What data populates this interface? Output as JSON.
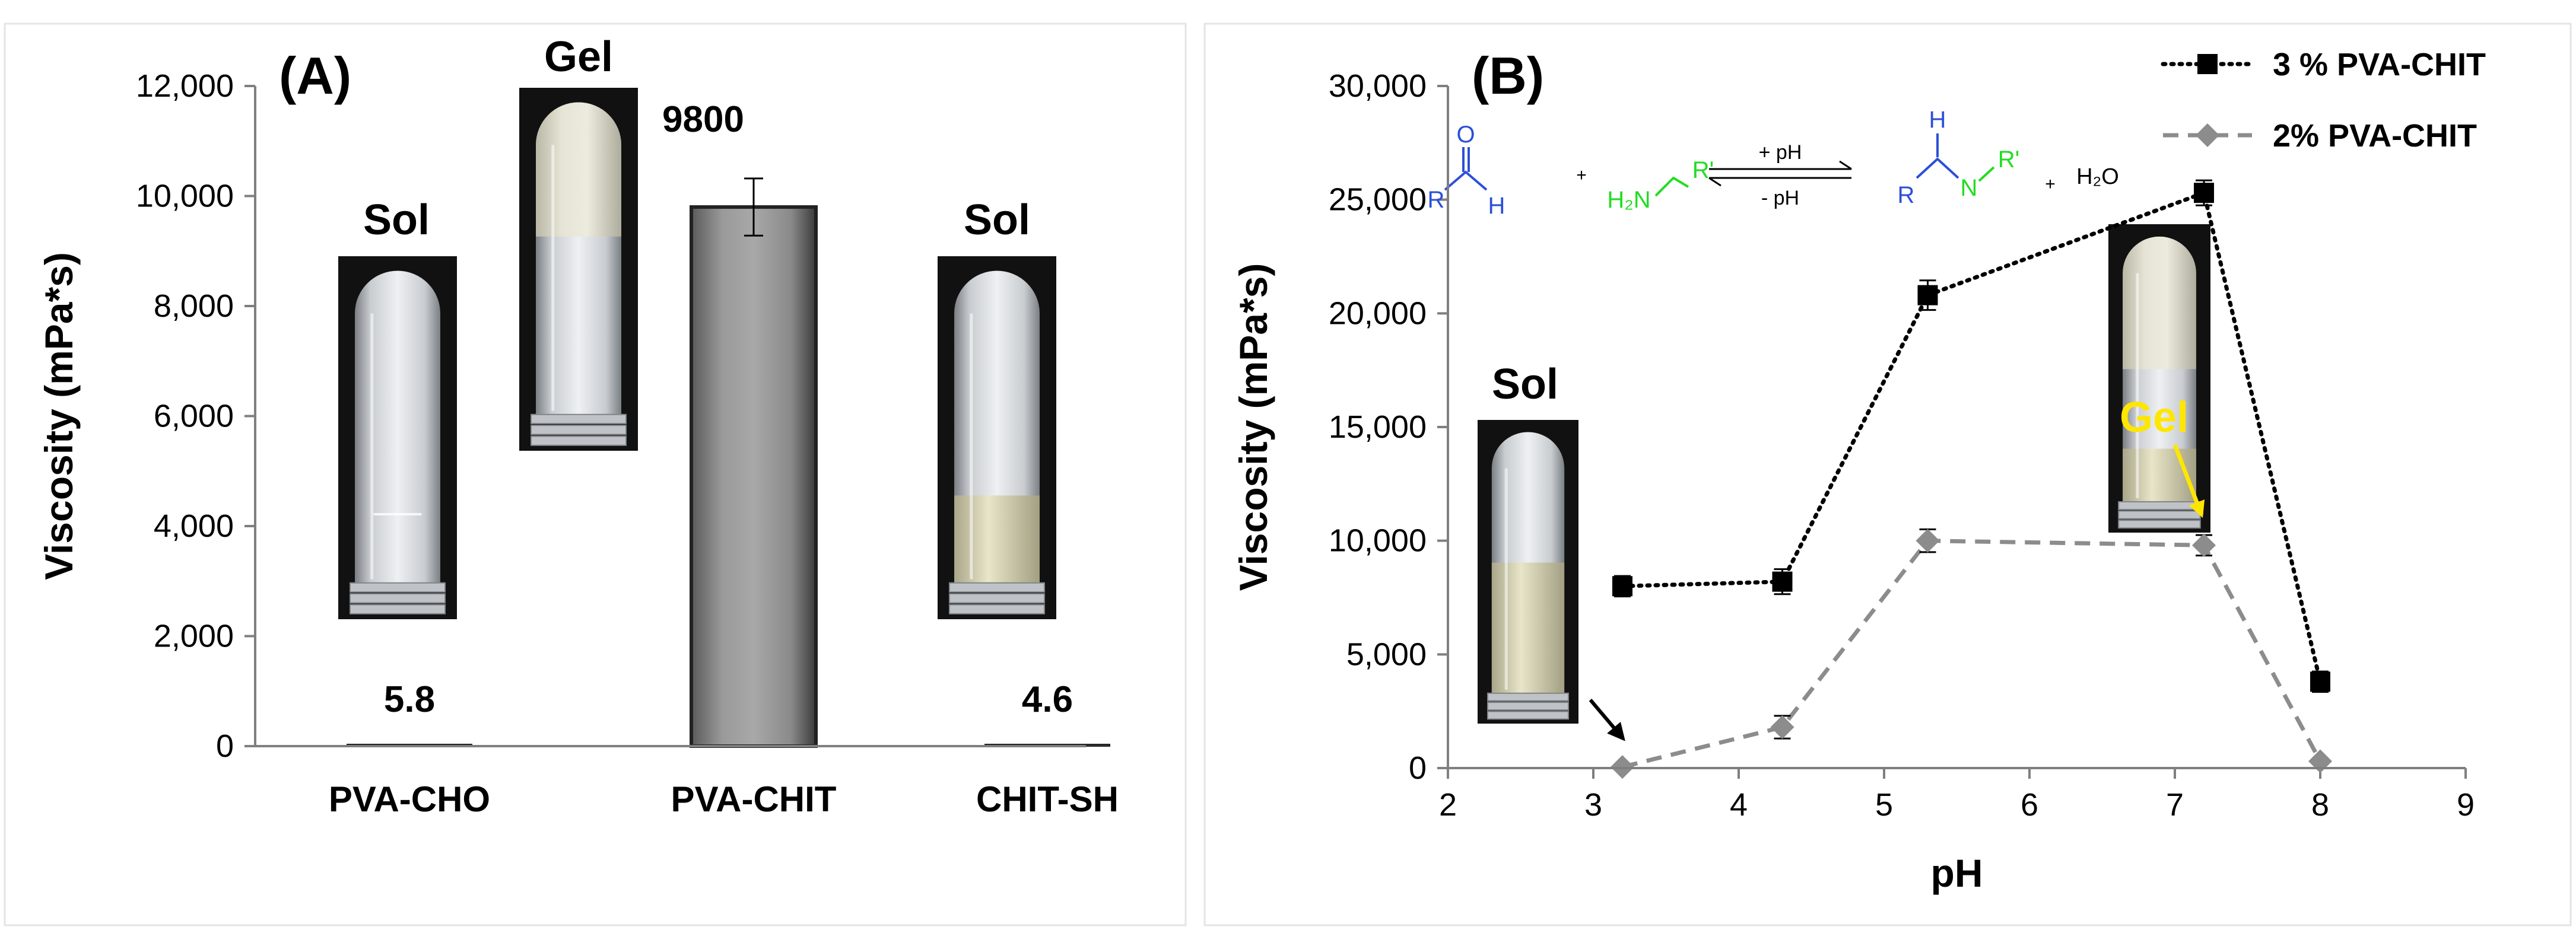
{
  "colors": {
    "bar_fill": "#8c8c8c",
    "series_3pct": "#000000",
    "series_2pct": "#8c8c8c",
    "gel_arrow": "#ffe600",
    "aldehyde_blue": "#2b4fd8",
    "amine_green": "#22dd22"
  },
  "chart_data": [
    {
      "type": "bar",
      "panel_label": "(A)",
      "title": "",
      "xlabel": "",
      "ylabel": "Viscosity (mPa*s)",
      "ylim": [
        0,
        12000
      ],
      "yticks": [
        0,
        2000,
        4000,
        6000,
        8000,
        10000,
        12000
      ],
      "ytick_labels": [
        "0",
        "2,000",
        "4,000",
        "6,000",
        "8,000",
        "10,000",
        "12,000"
      ],
      "categories": [
        "PVA-CHO",
        "PVA-CHIT",
        "CHIT-SH"
      ],
      "values": [
        5.8,
        9800,
        4.6
      ],
      "errors": [
        0,
        520,
        0
      ],
      "data_labels": [
        "5.8",
        "9800",
        "4.6"
      ],
      "state_labels": [
        "Sol",
        "Gel",
        "Sol"
      ]
    },
    {
      "type": "line",
      "panel_label": "(B)",
      "title": "",
      "xlabel": "pH",
      "ylabel": "Viscosity (mPa*s)",
      "xlim": [
        2,
        9
      ],
      "ylim": [
        0,
        30000
      ],
      "xticks": [
        2,
        3,
        4,
        5,
        6,
        7,
        8,
        9
      ],
      "yticks": [
        0,
        5000,
        10000,
        15000,
        20000,
        25000,
        30000
      ],
      "ytick_labels": [
        "0",
        "5,000",
        "10,000",
        "15,000",
        "20,000",
        "25,000",
        "30,000"
      ],
      "legend_position": "top-right",
      "series": [
        {
          "name": "3 % PVA-CHIT",
          "marker": "square",
          "line": "dotted",
          "x": [
            3.2,
            4.3,
            5.3,
            7.2,
            8.0
          ],
          "y": [
            8000,
            8200,
            20800,
            25300,
            3800
          ],
          "errors": [
            450,
            550,
            650,
            550,
            450
          ]
        },
        {
          "name": "2% PVA-CHIT",
          "marker": "diamond",
          "line": "dashed",
          "x": [
            3.2,
            4.3,
            5.3,
            7.2,
            8.0
          ],
          "y": [
            50,
            1800,
            10000,
            9800,
            300
          ],
          "errors": [
            0,
            500,
            500,
            450,
            0
          ]
        }
      ],
      "annotations": {
        "sol_label": "Sol",
        "gel_label": "Gel"
      },
      "reaction": {
        "plus_ph": "+ pH",
        "minus_ph": "- pH",
        "aldehyde_o": "O",
        "aldehyde_r": "R",
        "aldehyde_h": "H",
        "amine_h2n": "H₂N",
        "amine_r": "R'",
        "imine_h": "H",
        "imine_r": "R",
        "imine_n": "N",
        "imine_r2": "R'",
        "water": "H₂O",
        "plus": "+"
      }
    }
  ]
}
